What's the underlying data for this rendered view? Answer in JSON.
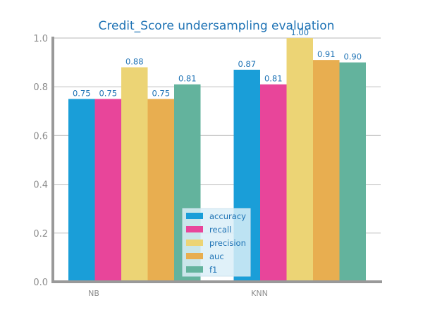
{
  "chart_data": {
    "type": "bar",
    "title": "Credit_Score undersampling evaluation",
    "xlabel": "",
    "ylabel": "",
    "categories": [
      "NB",
      "KNN"
    ],
    "ylim": [
      0,
      1.0
    ],
    "yticks": [
      0.0,
      0.2,
      0.4,
      0.6,
      0.8,
      1.0
    ],
    "grid": "horizontal",
    "legend_position": "bottom-center",
    "series": [
      {
        "name": "accuracy",
        "color": "#1a9ed8",
        "values": [
          0.75,
          0.87
        ],
        "labels": [
          "0.75",
          "0.87"
        ]
      },
      {
        "name": "recall",
        "color": "#e8459a",
        "values": [
          0.75,
          0.81
        ],
        "labels": [
          "0.75",
          "0.81"
        ]
      },
      {
        "name": "precision",
        "color": "#ecd475",
        "values": [
          0.88,
          1.0
        ],
        "labels": [
          "0.88",
          "1.00"
        ]
      },
      {
        "name": "auc",
        "color": "#e8ae50",
        "values": [
          0.75,
          0.91
        ],
        "labels": [
          "0.75",
          "0.91"
        ]
      },
      {
        "name": "f1",
        "color": "#63b39d",
        "values": [
          0.81,
          0.9
        ],
        "labels": [
          "0.81",
          "0.90"
        ]
      }
    ]
  }
}
